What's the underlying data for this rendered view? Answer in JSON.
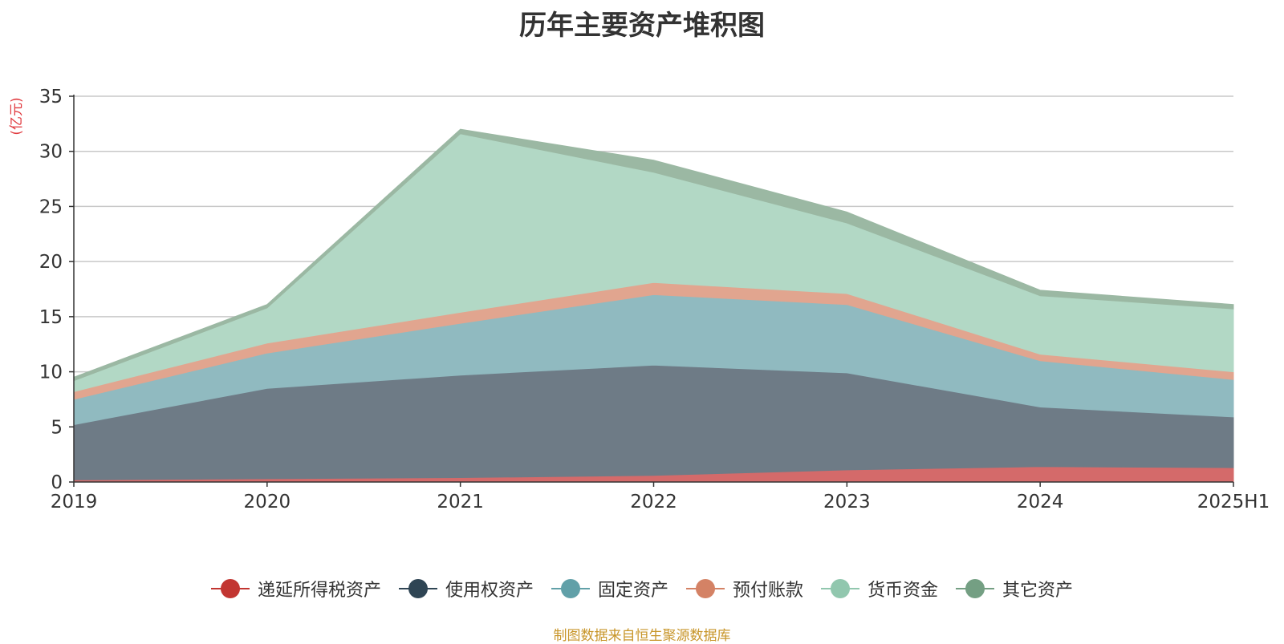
{
  "chart_data": {
    "type": "area",
    "stacked": true,
    "title": "历年主要资产堆积图",
    "ylabel": "(亿元)",
    "ylabel_color": "#e0393e",
    "ylim": [
      0,
      35
    ],
    "yticks": [
      0,
      5,
      10,
      15,
      20,
      25,
      30,
      35
    ],
    "categories": [
      "2019",
      "2020",
      "2021",
      "2022",
      "2023",
      "2024",
      "2025H1"
    ],
    "grid": true,
    "legend_position": "bottom",
    "series": [
      {
        "name": "递延所得税资产",
        "color": "#c23531",
        "area_color": "#d46a6a",
        "values": [
          0.2,
          0.3,
          0.4,
          0.6,
          1.1,
          1.4,
          1.3
        ]
      },
      {
        "name": "使用权资产",
        "color": "#2f4554",
        "area_color": "#6e7b86",
        "values": [
          5.0,
          8.2,
          9.3,
          10.0,
          8.8,
          5.4,
          4.6
        ]
      },
      {
        "name": "固定资产",
        "color": "#61a0a8",
        "area_color": "#90bac0",
        "values": [
          2.3,
          3.2,
          4.7,
          6.4,
          6.2,
          4.2,
          3.4
        ]
      },
      {
        "name": "预付账款",
        "color": "#d48265",
        "area_color": "#e1a58f",
        "values": [
          0.7,
          0.9,
          1.0,
          1.1,
          1.0,
          0.6,
          0.7
        ]
      },
      {
        "name": "货币资金",
        "color": "#91c7ae",
        "area_color": "#b2d8c5",
        "values": [
          1.0,
          3.2,
          16.2,
          10.0,
          6.4,
          5.3,
          5.7
        ]
      },
      {
        "name": "其它资产",
        "color": "#749f83",
        "area_color": "#9bb8a3",
        "values": [
          0.3,
          0.3,
          0.4,
          1.1,
          1.0,
          0.5,
          0.4
        ]
      }
    ]
  },
  "source_note": "制图数据来自恒生聚源数据库"
}
